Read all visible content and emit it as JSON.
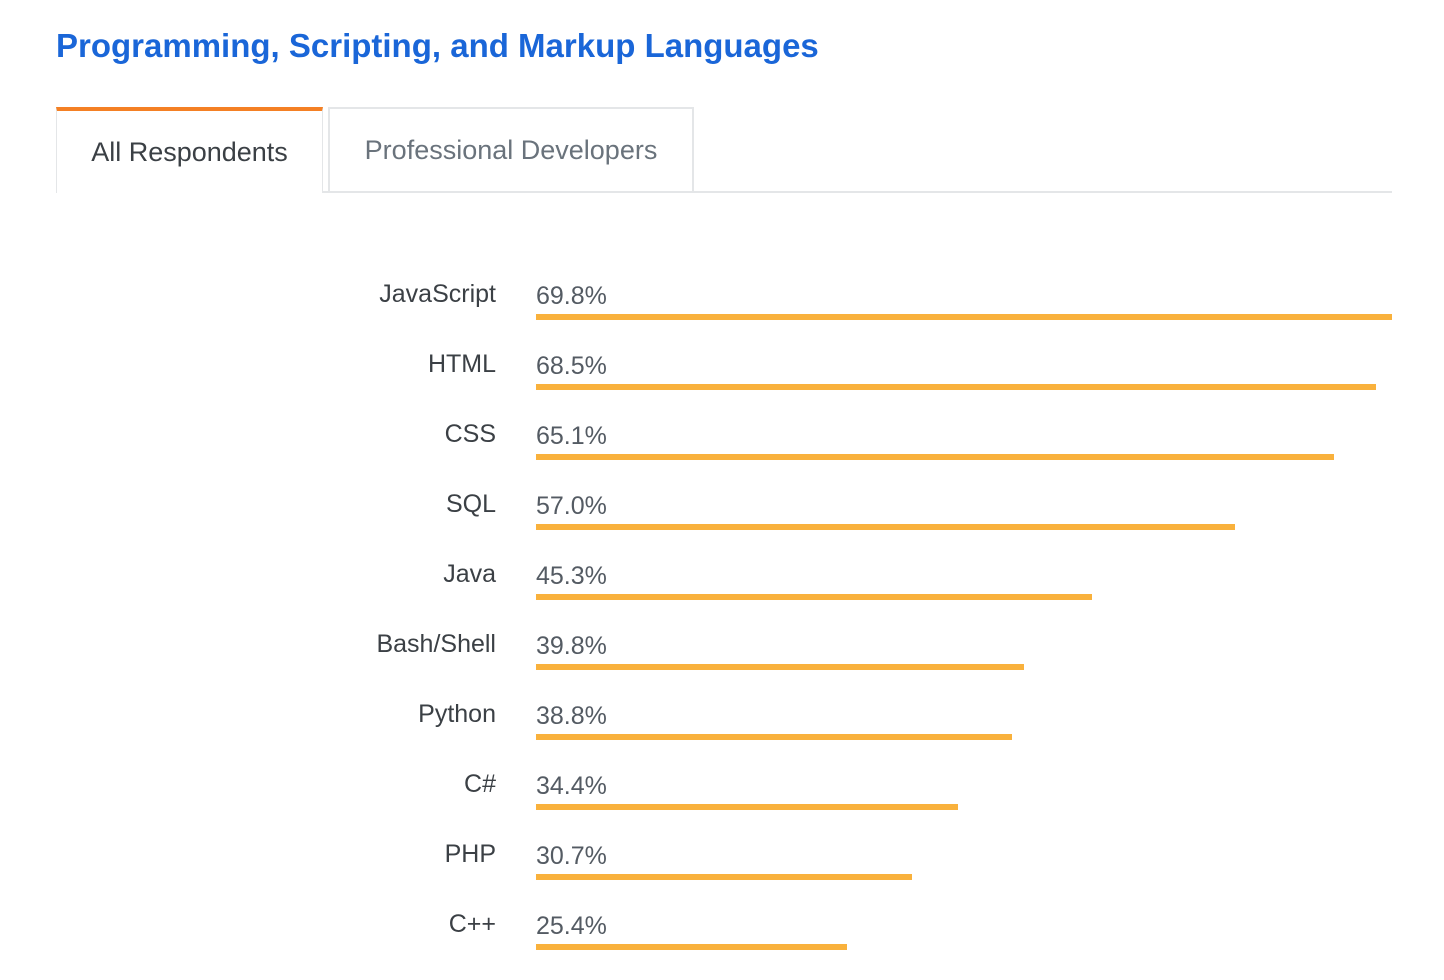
{
  "header": {
    "title": "Programming, Scripting, and Markup Languages"
  },
  "tabs": [
    {
      "label": "All Respondents",
      "active": true
    },
    {
      "label": "Professional Developers",
      "active": false
    }
  ],
  "colors": {
    "title": "#1a66d8",
    "accent_tab": "#f48024",
    "bar": "#f9b13c"
  },
  "chart_data": {
    "type": "bar",
    "orientation": "horizontal",
    "categories": [
      "JavaScript",
      "HTML",
      "CSS",
      "SQL",
      "Java",
      "Bash/Shell",
      "Python",
      "C#",
      "PHP",
      "C++"
    ],
    "values": [
      69.8,
      68.5,
      65.1,
      57.0,
      45.3,
      39.8,
      38.8,
      34.4,
      30.7,
      25.4
    ],
    "value_labels": [
      "69.8%",
      "68.5%",
      "65.1%",
      "57.0%",
      "45.3%",
      "39.8%",
      "38.8%",
      "34.4%",
      "30.7%",
      "25.4%"
    ],
    "unit": "%",
    "grid": false,
    "legend": "none"
  }
}
